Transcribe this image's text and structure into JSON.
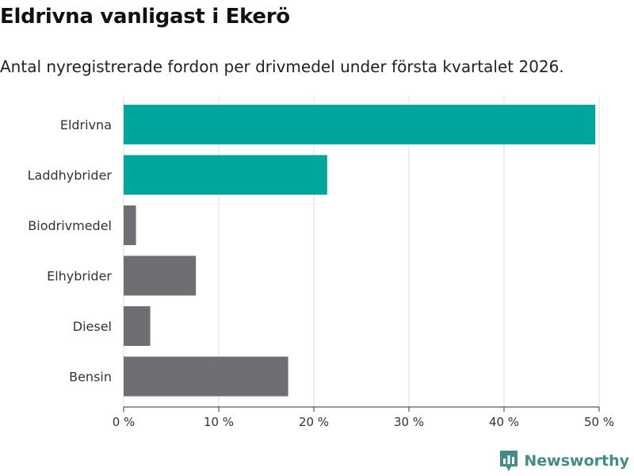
{
  "header": {
    "title": "Eldrivna vanligast i Ekerö",
    "subtitle": "Antal nyregistrerade fordon per drivmedel under första kvartalet 2026."
  },
  "brand": {
    "name": "Newsworthy",
    "icon": "newsworthy-logo-icon",
    "color": "#3f8d86"
  },
  "chart_data": {
    "type": "bar",
    "orientation": "horizontal",
    "title": "Eldrivna vanligast i Ekerö",
    "subtitle": "Antal nyregistrerade fordon per drivmedel under första kvartalet 2026.",
    "xlabel": "",
    "ylabel": "",
    "categories": [
      "Eldrivna",
      "Laddhybrider",
      "Biodrivmedel",
      "Elhybrider",
      "Diesel",
      "Bensin"
    ],
    "values": [
      49.6,
      21.4,
      1.3,
      7.6,
      2.8,
      17.3
    ],
    "unit": "%",
    "xlim": [
      0,
      50
    ],
    "xticks": [
      0,
      10,
      20,
      30,
      40,
      50
    ],
    "xtick_labels": [
      "0 %",
      "10 %",
      "20 %",
      "30 %",
      "40 %",
      "50 %"
    ],
    "grid": true,
    "highlight_color": "#00a59b",
    "base_color": "#6e6e73",
    "highlighted": [
      "Eldrivna",
      "Laddhybrider"
    ]
  }
}
